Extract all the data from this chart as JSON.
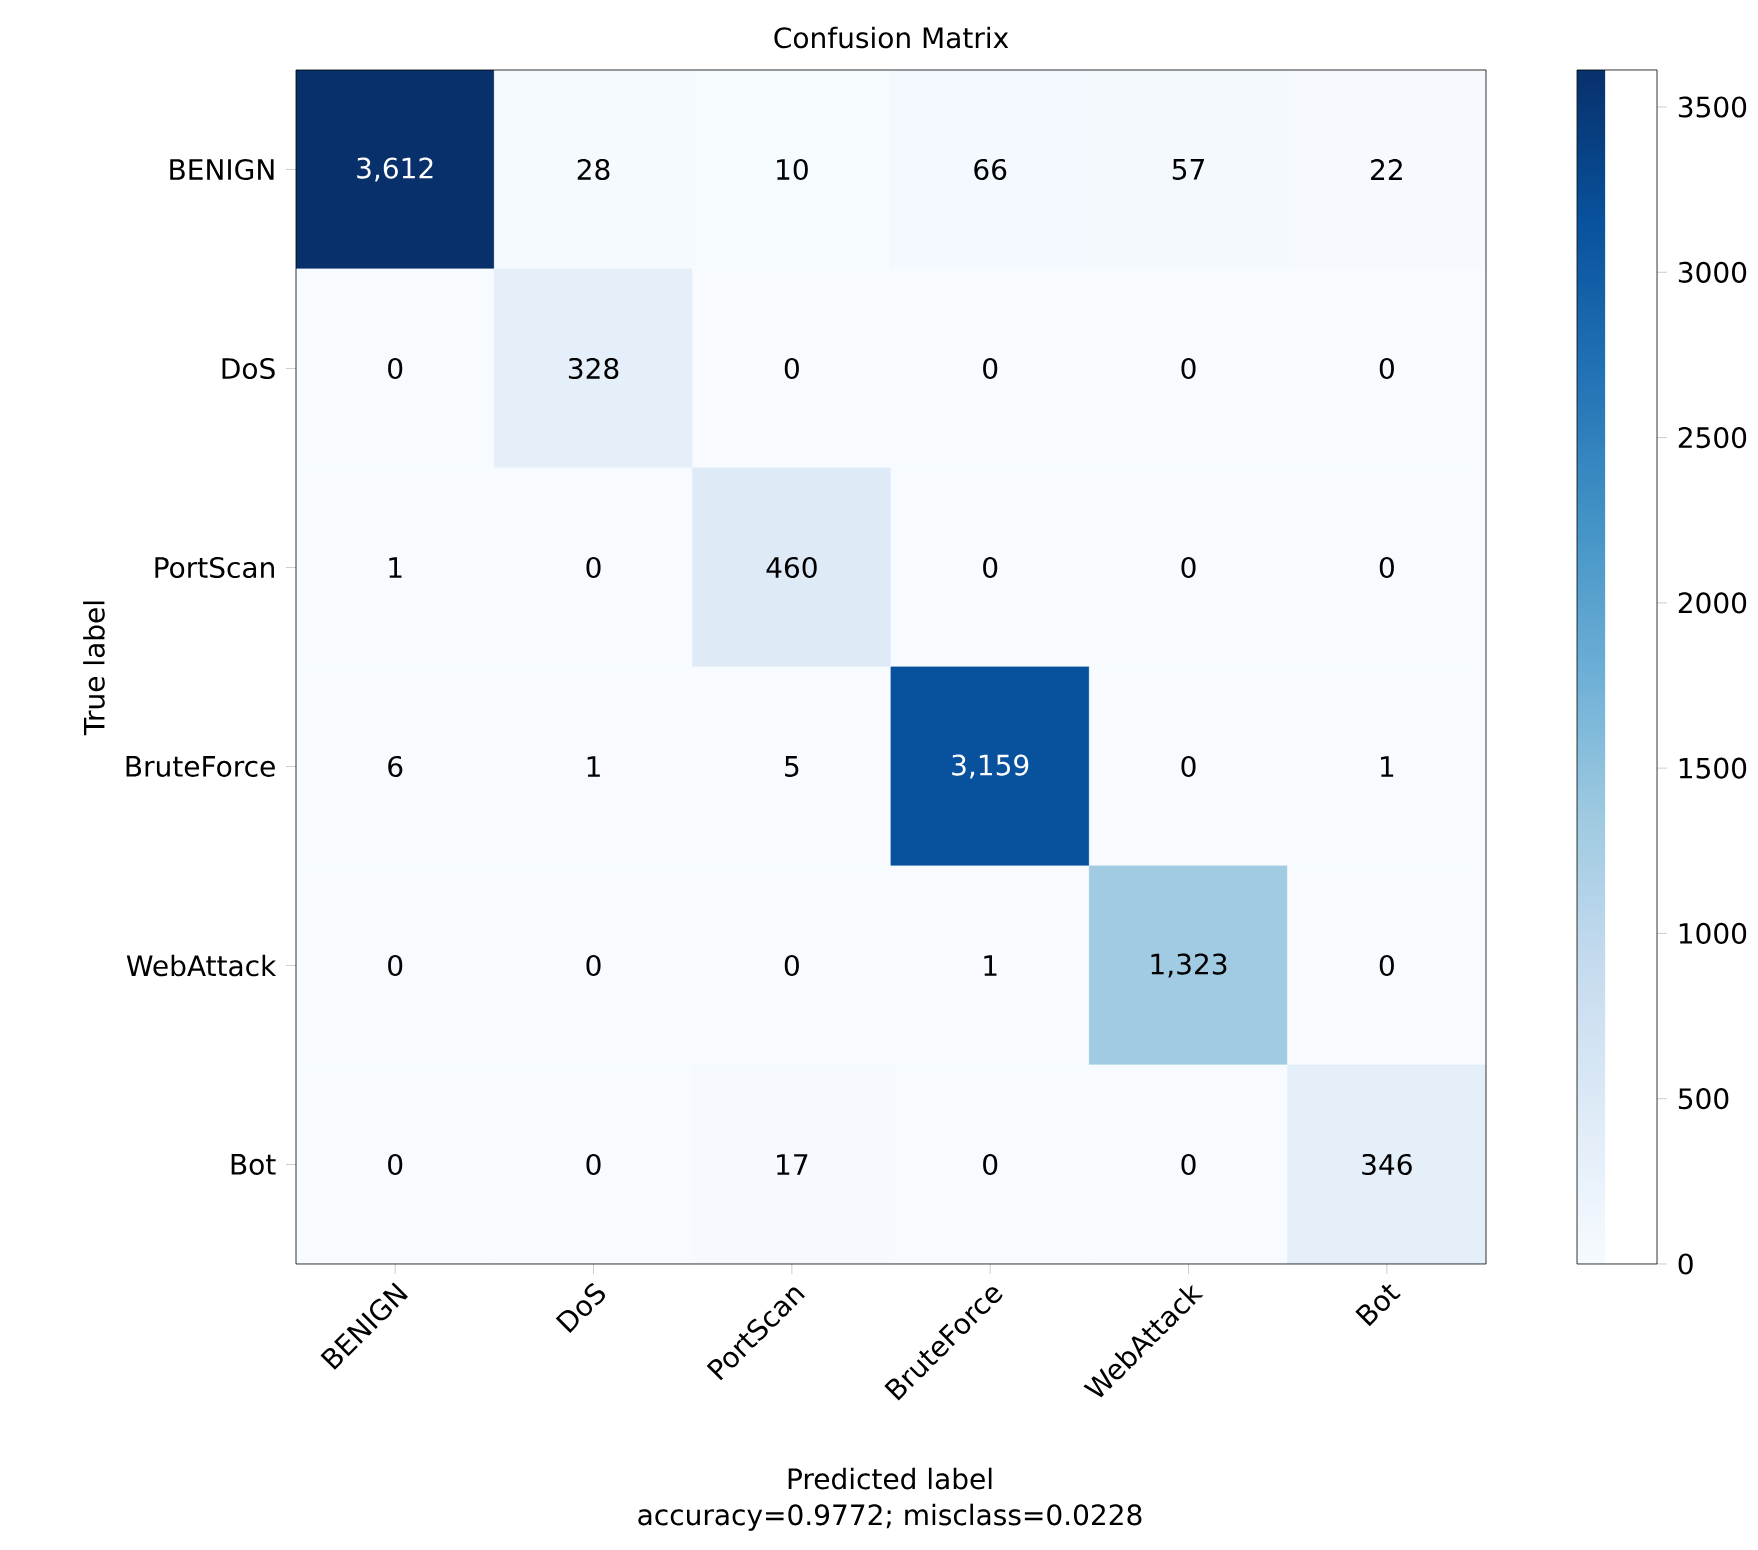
{
  "chart_data": {
    "type": "heatmap",
    "title": "Confusion Matrix",
    "xlabel": "Predicted label",
    "ylabel": "True label",
    "annotations": [
      "accuracy=0.9772; misclass=0.0228"
    ],
    "categories": [
      "BENIGN",
      "DoS",
      "PortScan",
      "BruteForce",
      "WebAttack",
      "Bot"
    ],
    "y_categories": [
      "BENIGN",
      "DoS",
      "PortScan",
      "BruteForce",
      "WebAttack",
      "Bot"
    ],
    "cells": [
      [
        3612,
        28,
        10,
        66,
        57,
        22
      ],
      [
        0,
        328,
        0,
        0,
        0,
        0
      ],
      [
        1,
        0,
        460,
        0,
        0,
        0
      ],
      [
        6,
        1,
        5,
        3159,
        0,
        1
      ],
      [
        0,
        0,
        0,
        1,
        1323,
        0
      ],
      [
        0,
        0,
        17,
        0,
        0,
        346
      ]
    ],
    "cell_labels": [
      [
        "3,612",
        "28",
        "10",
        "66",
        "57",
        "22"
      ],
      [
        "0",
        "328",
        "0",
        "0",
        "0",
        "0"
      ],
      [
        "1",
        "0",
        "460",
        "0",
        "0",
        "0"
      ],
      [
        "6",
        "1",
        "5",
        "3,159",
        "0",
        "1"
      ],
      [
        "0",
        "0",
        "0",
        "1",
        "1,323",
        "0"
      ],
      [
        "0",
        "0",
        "17",
        "0",
        "0",
        "346"
      ]
    ],
    "clim": [
      0,
      3612
    ],
    "cticks": [
      0,
      500,
      1000,
      1500,
      2000,
      2500,
      3000,
      3500
    ]
  }
}
